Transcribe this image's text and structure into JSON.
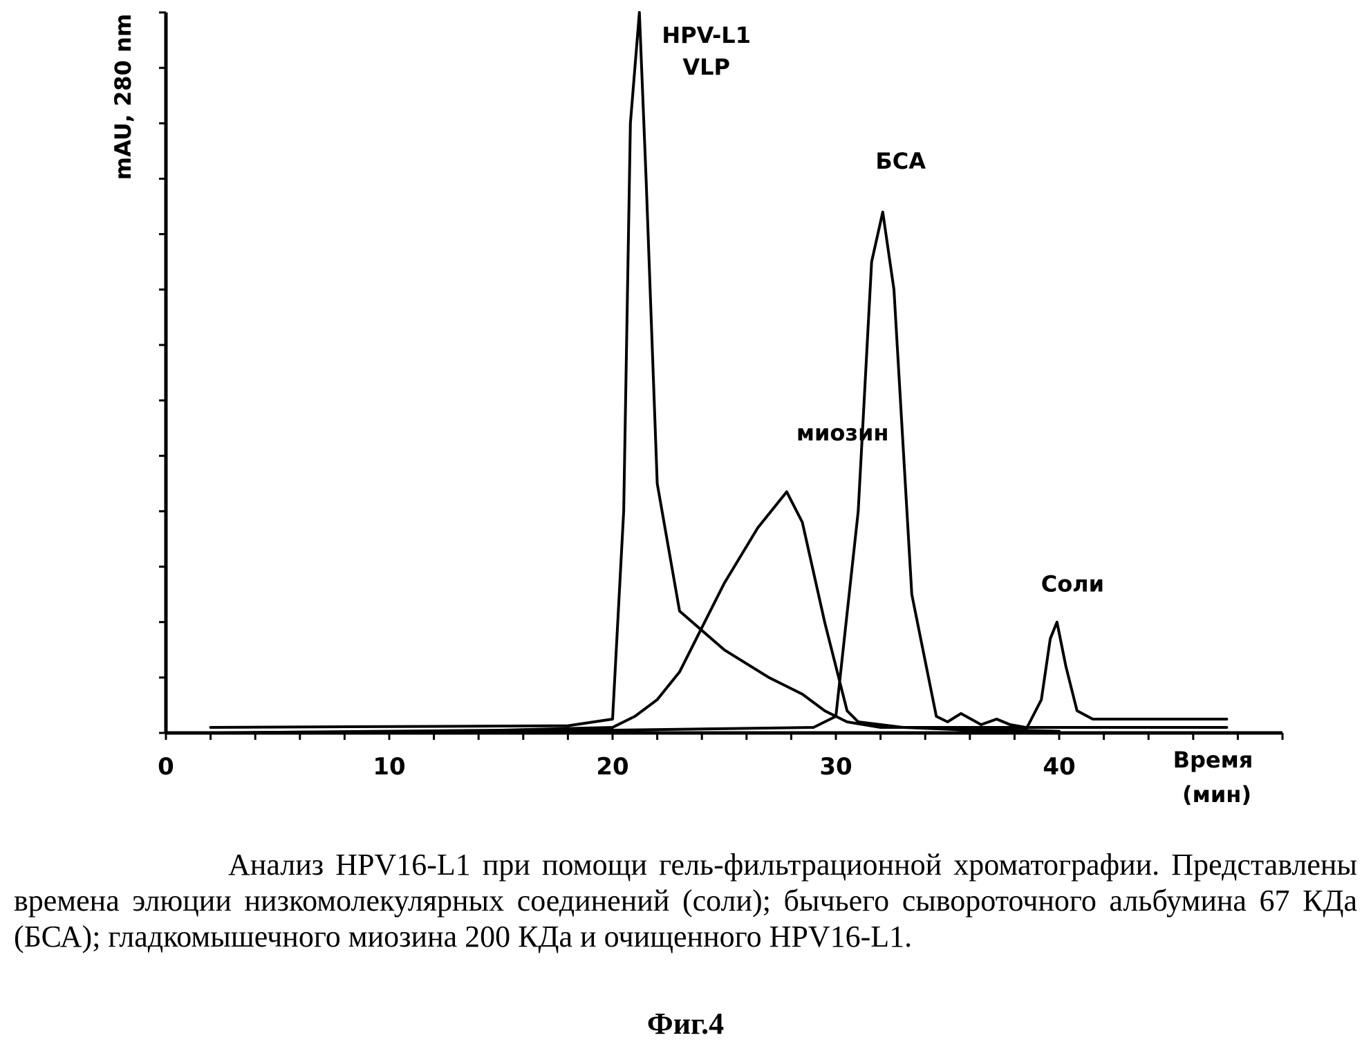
{
  "chart_data": {
    "type": "line",
    "title": "",
    "xlabel": "Время (мин)",
    "xlabel_lines": [
      "Время",
      "(мин)"
    ],
    "ylabel": "mAU,  280 nm",
    "xlim": [
      0,
      50
    ],
    "ylim": [
      0,
      130
    ],
    "x_ticks": [
      0,
      10,
      20,
      30,
      40
    ],
    "x_tick_labels": [
      "0",
      "10",
      "20",
      "30",
      "40"
    ],
    "y_ticks": [
      0,
      10,
      20,
      30,
      40,
      50,
      60,
      70,
      80,
      90,
      100,
      110,
      120,
      130
    ],
    "grid": false,
    "series": [
      {
        "x": [
          2,
          18,
          20,
          20.5,
          20.8,
          21.2,
          21.5,
          22,
          23,
          25,
          27,
          28.5,
          29.5,
          30.5,
          32,
          35,
          40,
          47.5
        ],
        "y": [
          1,
          1.3,
          2.5,
          40,
          110,
          130,
          100,
          45,
          22,
          15,
          10,
          7,
          4,
          2,
          1,
          1,
          1,
          1
        ],
        "color": "#000000"
      },
      {
        "x": [
          2,
          15,
          20,
          21,
          22,
          23,
          25,
          26.5,
          27.8,
          28.5,
          29.5,
          30.5,
          31,
          33,
          36,
          38,
          40
        ],
        "y": [
          0,
          0.5,
          1,
          3,
          6,
          11,
          27,
          37,
          43.5,
          38,
          20,
          4,
          2,
          1,
          0.5,
          0.5,
          0.3
        ],
        "color": "#000000"
      },
      {
        "x": [
          0,
          20,
          29,
          30,
          31,
          31.6,
          32.1,
          32.6,
          33.4,
          34.5,
          35,
          35.6,
          36.5,
          37.2,
          37.8,
          38.5
        ],
        "y": [
          0,
          0.5,
          1,
          3,
          40,
          85,
          94,
          80,
          25,
          3,
          2,
          3.5,
          1.5,
          2.5,
          1.5,
          1
        ],
        "color": "#000000"
      },
      {
        "x": [
          0,
          35,
          38.5,
          39.2,
          39.6,
          39.9,
          40.3,
          40.8,
          41.5,
          43,
          47.5
        ],
        "y": [
          0,
          0,
          0.5,
          6,
          17,
          20,
          12,
          4,
          2.5,
          2.5,
          2.5
        ],
        "color": "#000000"
      }
    ],
    "annotations": [
      {
        "lines": [
          "HPV-L1",
          "VLP"
        ],
        "x": 24.2,
        "y": 124.5
      },
      {
        "lines": [
          "БСА"
        ],
        "x": 32.9,
        "y": 101.8
      },
      {
        "lines": [
          "миозин"
        ],
        "x": 30.3,
        "y": 52.8
      },
      {
        "lines": [
          "Соли"
        ],
        "x": 40.6,
        "y": 25.5
      }
    ]
  },
  "caption": "Анализ HPV16-L1 при помощи гель-фильтрационной хроматографии. Представлены времена элюции низкомолекулярных соединений (соли); бычьего сывороточного альбумина 67 КДа (БСА); гладкомышечного миозина 200 КДа и очищенного HPV16-L1.",
  "figure_label": "Фиг.4"
}
